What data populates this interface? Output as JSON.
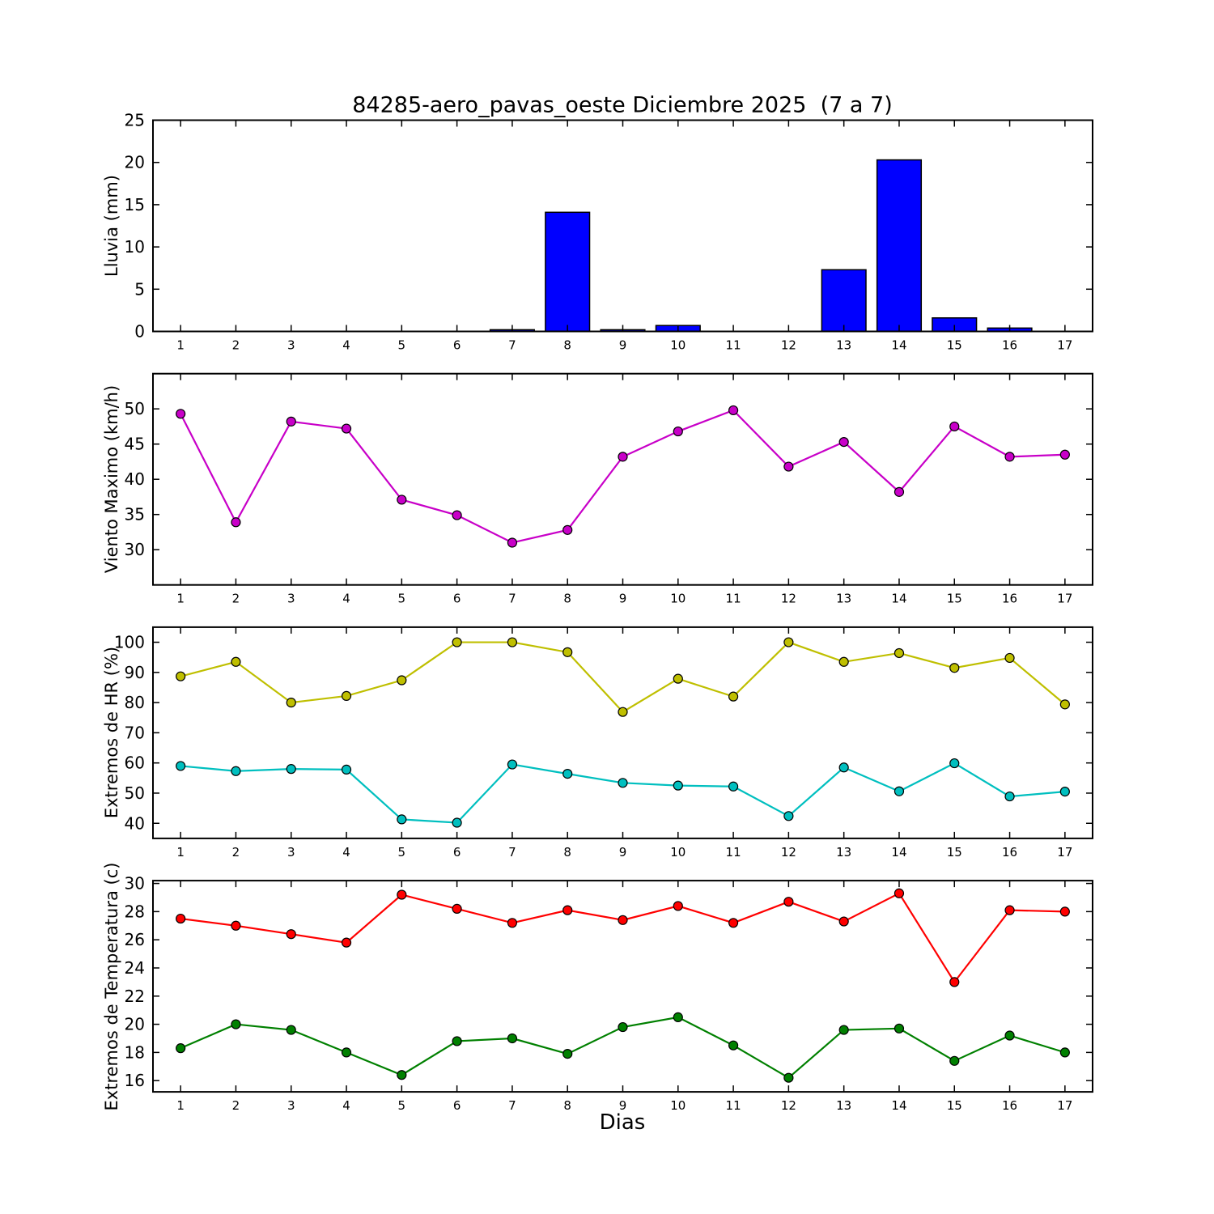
{
  "title": "84285-aero_pavas_oeste Diciembre 2025  (7 a 7)",
  "xlabel": "Dias",
  "chart_data": [
    {
      "type": "bar",
      "name": "lluvia",
      "ylabel": "Lluvia (mm)",
      "x": [
        1,
        2,
        3,
        4,
        5,
        6,
        7,
        8,
        9,
        10,
        11,
        12,
        13,
        14,
        15,
        16,
        17
      ],
      "values": [
        0,
        0,
        0,
        0,
        0,
        0,
        0.2,
        14.1,
        0.2,
        0.7,
        0,
        0,
        7.3,
        20.3,
        1.6,
        0.4,
        0
      ],
      "bar_color": "#0000ff",
      "bar_edge_color": "#000000",
      "xlim": [
        0.5,
        17.5
      ],
      "ylim": [
        0,
        25
      ],
      "yticks": [
        0,
        5,
        10,
        15,
        20,
        25
      ],
      "grid": false
    },
    {
      "type": "line",
      "name": "viento-maximo",
      "ylabel": "Viento Maximo (km/h)",
      "x": [
        1,
        2,
        3,
        4,
        5,
        6,
        7,
        8,
        9,
        10,
        11,
        12,
        13,
        14,
        15,
        16,
        17
      ],
      "series": [
        {
          "name": "viento_maximo",
          "color": "#c800c8",
          "marker": "circle",
          "values": [
            49.3,
            33.9,
            48.2,
            47.2,
            37.1,
            34.9,
            31.0,
            32.8,
            43.2,
            46.8,
            49.8,
            41.8,
            45.3,
            38.2,
            47.5,
            43.2,
            43.5
          ]
        }
      ],
      "xlim": [
        0.5,
        17.5
      ],
      "ylim": [
        25,
        55
      ],
      "yticks": [
        30,
        35,
        40,
        45,
        50
      ],
      "grid": false
    },
    {
      "type": "line",
      "name": "extremos-hr",
      "ylabel": "Extremos de HR (%)",
      "x": [
        1,
        2,
        3,
        4,
        5,
        6,
        7,
        8,
        9,
        10,
        11,
        12,
        13,
        14,
        15,
        16,
        17
      ],
      "series": [
        {
          "name": "hr_maxima",
          "color": "#bfbf00",
          "marker": "circle",
          "values": [
            88.7,
            93.5,
            80.0,
            82.2,
            87.4,
            100.0,
            100.0,
            96.7,
            76.9,
            87.9,
            82.0,
            100.0,
            93.5,
            96.4,
            91.5,
            94.8,
            79.4
          ]
        },
        {
          "name": "hr_minima",
          "color": "#00bfbf",
          "marker": "circle",
          "values": [
            59.0,
            57.3,
            58.0,
            57.8,
            41.3,
            40.2,
            59.5,
            56.4,
            53.4,
            52.5,
            52.2,
            42.4,
            58.5,
            50.6,
            59.9,
            48.9,
            50.5
          ]
        }
      ],
      "xlim": [
        0.5,
        17.5
      ],
      "ylim": [
        35,
        105
      ],
      "yticks": [
        40,
        50,
        60,
        70,
        80,
        90,
        100
      ],
      "grid": false
    },
    {
      "type": "line",
      "name": "extremos-temperatura",
      "ylabel": "Extremos de Temperatura (c)",
      "x": [
        1,
        2,
        3,
        4,
        5,
        6,
        7,
        8,
        9,
        10,
        11,
        12,
        13,
        14,
        15,
        16,
        17
      ],
      "series": [
        {
          "name": "temperatura_maxima",
          "color": "#ff0000",
          "marker": "circle",
          "values": [
            27.5,
            27.0,
            26.4,
            25.8,
            29.2,
            28.2,
            27.2,
            28.1,
            27.4,
            28.4,
            27.2,
            28.7,
            27.3,
            29.3,
            23.0,
            28.1,
            28.0
          ]
        },
        {
          "name": "temperatura_minima",
          "color": "#008000",
          "marker": "circle",
          "values": [
            18.3,
            20.0,
            19.6,
            18.0,
            16.4,
            18.8,
            19.0,
            17.9,
            19.8,
            20.5,
            18.5,
            16.2,
            19.6,
            19.7,
            17.4,
            19.2,
            18.0
          ]
        }
      ],
      "xlim": [
        0.5,
        17.5
      ],
      "ylim": [
        15.2,
        30.2
      ],
      "yticks": [
        16,
        18,
        20,
        22,
        24,
        26,
        28,
        30
      ],
      "grid": false
    }
  ]
}
